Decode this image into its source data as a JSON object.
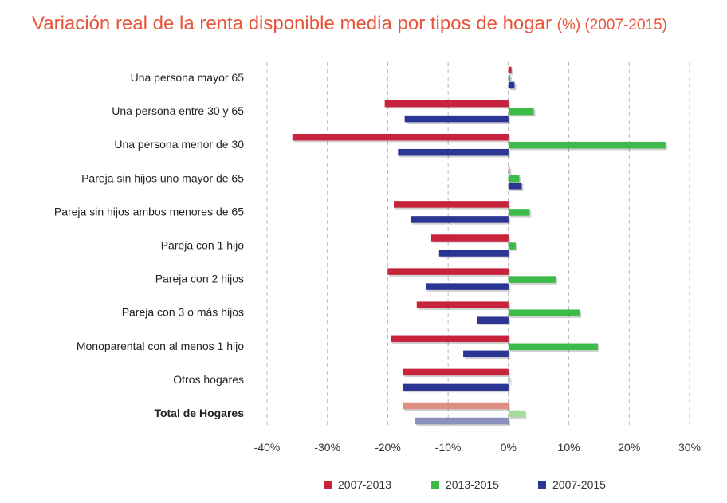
{
  "title": {
    "main": "Variación real de la renta disponible media por tipos de hogar",
    "suffix": "(%) (2007-2015)"
  },
  "colors": {
    "s2007_2013": "#c8233c",
    "s2013_2015": "#3dbb4a",
    "s2007_2015": "#2b3594",
    "total_2007_2013": "#de8f84",
    "total_2013_2015": "#a5dc9c",
    "total_2007_2015": "#8a8fbd"
  },
  "chart_data": {
    "type": "bar",
    "orientation": "horizontal",
    "categories": [
      "Una persona mayor 65",
      "Una persona entre 30 y 65",
      "Una persona menor de 30",
      "Pareja sin hijos uno mayor de 65",
      "Pareja sin hijos ambos menores de 65",
      "Pareja con 1 hijo",
      "Pareja con 2 hijos",
      "Pareja con 3  o más hijos",
      "Monoparental con al menos 1 hijo",
      "Otros hogares",
      "Total de Hogares"
    ],
    "bold_categories": [
      "Total de Hogares"
    ],
    "series": [
      {
        "name": "2007-2013",
        "values": [
          0.5,
          -20.5,
          -35.8,
          0.2,
          -19.0,
          -12.8,
          -20.0,
          -15.2,
          -19.5,
          -17.5,
          -17.5
        ]
      },
      {
        "name": "2013-2015",
        "values": [
          0.3,
          4.2,
          26.0,
          1.8,
          3.5,
          1.2,
          7.8,
          11.8,
          14.8,
          0.2,
          2.7
        ]
      },
      {
        "name": "2007-2015",
        "values": [
          1.0,
          -17.2,
          -18.3,
          2.2,
          -16.2,
          -11.5,
          -13.7,
          -5.2,
          -7.5,
          -17.5,
          -15.5
        ]
      }
    ],
    "x_ticks": [
      "-40%",
      "-30%",
      "-20%",
      "-10%",
      "0%",
      "10%",
      "20%",
      "30%"
    ],
    "xlim": [
      -40,
      30
    ],
    "grid": true,
    "legend_position": "bottom"
  }
}
